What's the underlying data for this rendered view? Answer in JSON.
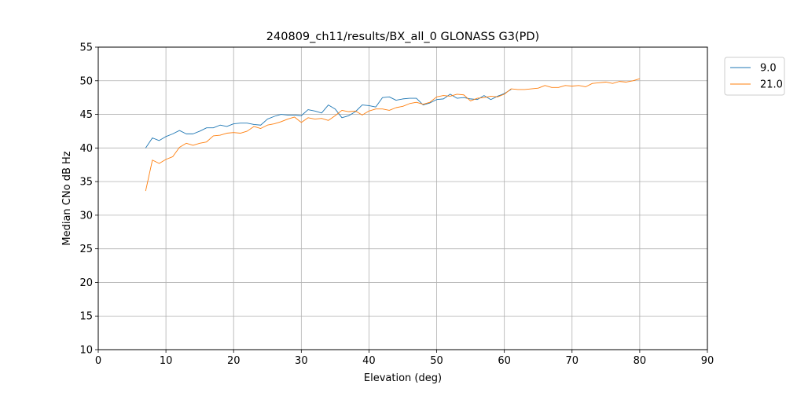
{
  "chart_data": {
    "type": "line",
    "title": "240809_ch11/results/BX_all_0 GLONASS G3(PD)",
    "xlabel": "Elevation (deg)",
    "ylabel": "Median CNo dB Hz",
    "xlim": [
      0,
      90
    ],
    "ylim": [
      10,
      55
    ],
    "xticks": [
      0,
      10,
      20,
      30,
      40,
      50,
      60,
      70,
      80,
      90
    ],
    "yticks": [
      10,
      15,
      20,
      25,
      30,
      35,
      40,
      45,
      50,
      55
    ],
    "grid": true,
    "legend_position": "outside-top-right",
    "series": [
      {
        "name": "9.0",
        "color": "#1f77b4",
        "x": [
          7,
          8,
          9,
          10,
          11,
          12,
          13,
          14,
          15,
          16,
          17,
          18,
          19,
          20,
          21,
          22,
          23,
          24,
          25,
          26,
          27,
          28,
          29,
          30,
          31,
          32,
          33,
          34,
          35,
          36,
          37,
          38,
          39,
          40,
          41,
          42,
          43,
          44,
          45,
          46,
          47,
          48,
          49,
          50,
          51,
          52,
          53,
          54,
          55,
          56,
          57,
          58,
          59,
          60,
          61
        ],
        "y": [
          40.0,
          41.5,
          41.1,
          41.7,
          42.1,
          42.6,
          42.1,
          42.1,
          42.5,
          43.0,
          43.0,
          43.4,
          43.2,
          43.6,
          43.7,
          43.7,
          43.5,
          43.4,
          44.3,
          44.7,
          45.0,
          44.9,
          44.9,
          44.8,
          45.7,
          45.5,
          45.2,
          46.4,
          45.8,
          44.5,
          44.8,
          45.4,
          46.4,
          46.3,
          46.1,
          47.5,
          47.6,
          47.1,
          47.3,
          47.4,
          47.4,
          46.4,
          46.7,
          47.2,
          47.3,
          48.0,
          47.4,
          47.5,
          47.3,
          47.2,
          47.8,
          47.2,
          47.7,
          48.1,
          48.7
        ]
      },
      {
        "name": "21.0",
        "color": "#ff7f0e",
        "x": [
          7,
          8,
          9,
          10,
          11,
          12,
          13,
          14,
          15,
          16,
          17,
          18,
          19,
          20,
          21,
          22,
          23,
          24,
          25,
          26,
          27,
          28,
          29,
          30,
          31,
          32,
          33,
          34,
          35,
          36,
          37,
          38,
          39,
          40,
          41,
          42,
          43,
          44,
          45,
          46,
          47,
          48,
          49,
          50,
          51,
          52,
          53,
          54,
          55,
          56,
          57,
          58,
          59,
          60,
          61,
          62,
          63,
          64,
          65,
          66,
          67,
          68,
          69,
          70,
          71,
          72,
          73,
          74,
          75,
          76,
          77,
          78,
          79,
          80
        ],
        "y": [
          33.6,
          38.2,
          37.7,
          38.3,
          38.7,
          40.1,
          40.7,
          40.4,
          40.7,
          40.9,
          41.8,
          41.9,
          42.2,
          42.3,
          42.2,
          42.5,
          43.2,
          42.9,
          43.4,
          43.6,
          43.9,
          44.3,
          44.6,
          43.8,
          44.5,
          44.3,
          44.4,
          44.1,
          44.8,
          45.6,
          45.4,
          45.5,
          44.9,
          45.5,
          45.8,
          45.8,
          45.6,
          46.0,
          46.2,
          46.6,
          46.8,
          46.5,
          46.8,
          47.6,
          47.8,
          47.7,
          48.0,
          47.9,
          47.0,
          47.4,
          47.5,
          47.7,
          47.6,
          48.0,
          48.8,
          48.7,
          48.7,
          48.8,
          48.9,
          49.3,
          49.0,
          49.0,
          49.3,
          49.2,
          49.3,
          49.1,
          49.6,
          49.7,
          49.8,
          49.6,
          49.9,
          49.8,
          50.0,
          50.3
        ]
      }
    ]
  }
}
